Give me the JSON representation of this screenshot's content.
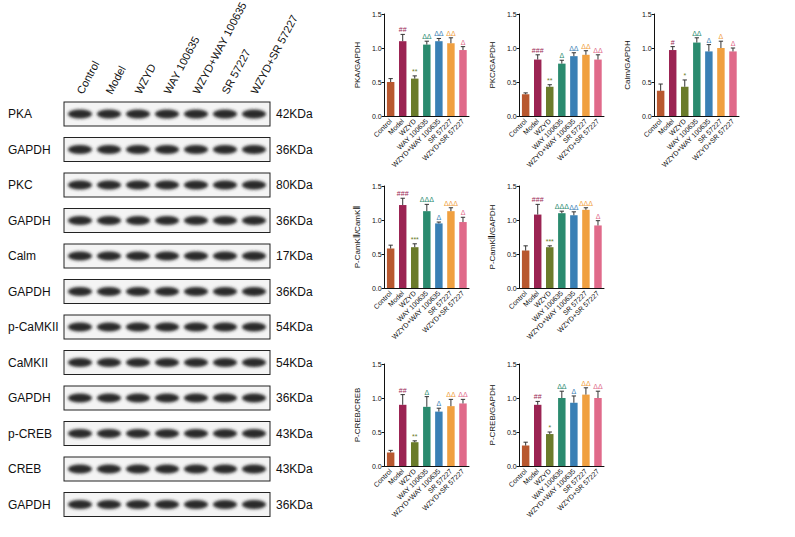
{
  "blot": {
    "lanes": [
      "Control",
      "Model",
      "WZYD",
      "WAY 100635",
      "WZYD+WAY 100635",
      "SR 57227",
      "WZYD+SR 57227"
    ],
    "rows": [
      {
        "label": "PKA",
        "size": "42KDa"
      },
      {
        "label": "GAPDH",
        "size": "36KDa"
      },
      {
        "label": "PKC",
        "size": "80KDa"
      },
      {
        "label": "GAPDH",
        "size": "36KDa"
      },
      {
        "label": "Calm",
        "size": "17KDa"
      },
      {
        "label": "GAPDH",
        "size": "36KDa"
      },
      {
        "label": "p-CaMKII",
        "size": "54KDa"
      },
      {
        "label": "CaMKII",
        "size": "54KDa"
      },
      {
        "label": "GAPDH",
        "size": "36KDa"
      },
      {
        "label": "p-CREB",
        "size": "43KDa"
      },
      {
        "label": "CREB",
        "size": "43KDa"
      },
      {
        "label": "GAPDH",
        "size": "36KDa"
      }
    ]
  },
  "chart_data": [
    {
      "type": "bar",
      "y_label": "PKA/GAPDH",
      "categories": [
        "Control",
        "Model",
        "WZYD",
        "WAY 100635",
        "WZYD+WAY 100635",
        "SR 57227",
        "WZYD+SR 57227"
      ],
      "values": [
        0.5,
        1.1,
        0.55,
        1.05,
        1.1,
        1.07,
        0.97
      ],
      "errors": [
        0.05,
        0.1,
        0.04,
        0.05,
        0.04,
        0.08,
        0.05
      ],
      "annotations": [
        null,
        "##",
        "**",
        "ΔΔ",
        "ΔΔ",
        "ΔΔ",
        "Δ"
      ],
      "colors": [
        "#b8582f",
        "#9b2453",
        "#6b7b2b",
        "#2b8b6f",
        "#3a80b5",
        "#f0a040",
        "#e06a8a"
      ],
      "ylim": [
        0,
        1.5
      ],
      "yticks": [
        {
          "value": 0,
          "label": "0.0"
        },
        0.5,
        {
          "value": 1,
          "label": "1.0"
        },
        1.5
      ],
      "grid": false
    },
    {
      "type": "bar",
      "y_label": "PKC/GAPDH",
      "categories": [
        "Control",
        "Model",
        "WZYD",
        "WAY 100635",
        "WZYD+WAY 100635",
        "SR 57227",
        "WZYD+SR 57227"
      ],
      "values": [
        0.32,
        0.83,
        0.43,
        0.77,
        0.88,
        0.9,
        0.83
      ],
      "errors": [
        0.02,
        0.07,
        0.03,
        0.05,
        0.05,
        0.06,
        0.07
      ],
      "annotations": [
        null,
        "###",
        "**",
        "Δ",
        "ΔΔ",
        "ΔΔ",
        "ΔΔ"
      ],
      "colors": [
        "#b8582f",
        "#9b2453",
        "#6b7b2b",
        "#2b8b6f",
        "#3a80b5",
        "#f0a040",
        "#e06a8a"
      ],
      "ylim": [
        0,
        1.5
      ],
      "yticks": [
        {
          "value": 0,
          "label": "0.0"
        },
        0.5,
        {
          "value": 1,
          "label": "1.0"
        },
        1.5
      ],
      "grid": false
    },
    {
      "type": "bar",
      "y_label": "Calm/GAPDH",
      "categories": [
        "Control",
        "Model",
        "WZYD",
        "WAY 100635",
        "WZYD+WAY 100635",
        "SR 57227",
        "WZYD+SR 57227"
      ],
      "values": [
        0.37,
        0.97,
        0.43,
        1.08,
        0.95,
        1.0,
        0.95
      ],
      "errors": [
        0.1,
        0.05,
        0.1,
        0.07,
        0.1,
        0.1,
        0.05
      ],
      "annotations": [
        null,
        "#",
        "*",
        "ΔΔ",
        "Δ",
        "Δ",
        "Δ"
      ],
      "colors": [
        "#b8582f",
        "#9b2453",
        "#6b7b2b",
        "#2b8b6f",
        "#3a80b5",
        "#f0a040",
        "#e06a8a"
      ],
      "ylim": [
        0,
        1.5
      ],
      "yticks": [
        {
          "value": 0,
          "label": "0.0"
        },
        0.5,
        {
          "value": 1,
          "label": "1.0"
        },
        1.5
      ],
      "grid": false
    },
    {
      "type": "bar",
      "y_label": "P-CamKⅡ/CamKⅡ",
      "categories": [
        "Control",
        "Model",
        "WZYD",
        "WAY 100635",
        "WZYD+WAY 100635",
        "SR 57227",
        "WZYD+SR 57227"
      ],
      "values": [
        0.58,
        1.22,
        0.6,
        1.13,
        0.95,
        1.13,
        0.97
      ],
      "errors": [
        0.05,
        0.1,
        0.05,
        0.1,
        0.02,
        0.05,
        0.07
      ],
      "annotations": [
        null,
        "###",
        "***",
        "ΔΔΔ",
        "Δ",
        "ΔΔΔ",
        "Δ"
      ],
      "colors": [
        "#b8582f",
        "#9b2453",
        "#6b7b2b",
        "#2b8b6f",
        "#3a80b5",
        "#f0a040",
        "#e06a8a"
      ],
      "ylim": [
        0,
        1.5
      ],
      "yticks": [
        {
          "value": 0,
          "label": "0.0"
        },
        0.5,
        {
          "value": 1,
          "label": "1.0"
        },
        1.5
      ],
      "grid": false
    },
    {
      "type": "bar",
      "y_label": "P-CamKⅡ/GAPDH",
      "categories": [
        "Control",
        "Model",
        "WZYD",
        "WAY 100635",
        "WZYD+WAY 100635",
        "SR 57227",
        "WZYD+SR 57227"
      ],
      "values": [
        0.55,
        1.08,
        0.6,
        1.1,
        1.07,
        1.15,
        0.92
      ],
      "errors": [
        0.07,
        0.15,
        0.02,
        0.03,
        0.05,
        0.03,
        0.07
      ],
      "annotations": [
        null,
        "###",
        "***",
        "ΔΔΔ",
        "ΔΔ",
        "ΔΔΔ",
        "Δ"
      ],
      "colors": [
        "#b8582f",
        "#9b2453",
        "#6b7b2b",
        "#2b8b6f",
        "#3a80b5",
        "#f0a040",
        "#e06a8a"
      ],
      "ylim": [
        0,
        1.5
      ],
      "yticks": [
        {
          "value": 0,
          "label": "0.0"
        },
        0.5,
        {
          "value": 1,
          "label": "1.0"
        },
        1.5
      ],
      "grid": false
    },
    {
      "type": "bar",
      "y_label": "P-CREB/CREB",
      "categories": [
        "Control",
        "Model",
        "WZYD",
        "WAY 100635",
        "WZYD+WAY 100635",
        "SR 57227",
        "WZYD+SR 57227"
      ],
      "values": [
        0.2,
        0.9,
        0.35,
        0.87,
        0.8,
        0.88,
        0.92
      ],
      "errors": [
        0.03,
        0.15,
        0.02,
        0.15,
        0.05,
        0.1,
        0.06
      ],
      "annotations": [
        null,
        "##",
        "**",
        "Δ",
        "Δ",
        "ΔΔ",
        "ΔΔ"
      ],
      "colors": [
        "#b8582f",
        "#9b2453",
        "#6b7b2b",
        "#2b8b6f",
        "#3a80b5",
        "#f0a040",
        "#e06a8a"
      ],
      "ylim": [
        0,
        1.5
      ],
      "yticks": [
        {
          "value": 0,
          "label": "0.0"
        },
        0.5,
        {
          "value": 1,
          "label": "1.0"
        },
        1.5
      ],
      "grid": false
    },
    {
      "type": "bar",
      "y_label": "P-CREB/GAPDH",
      "categories": [
        "Control",
        "Model",
        "WZYD",
        "WAY 100635",
        "WZYD+WAY 100635",
        "SR 57227",
        "WZYD+SR 57227"
      ],
      "values": [
        0.3,
        0.9,
        0.47,
        1.0,
        0.93,
        1.05,
        1.0
      ],
      "errors": [
        0.05,
        0.05,
        0.03,
        0.1,
        0.1,
        0.1,
        0.1
      ],
      "annotations": [
        null,
        "##",
        "*",
        "ΔΔ",
        "Δ",
        "ΔΔ",
        "ΔΔ"
      ],
      "colors": [
        "#b8582f",
        "#9b2453",
        "#6b7b2b",
        "#2b8b6f",
        "#3a80b5",
        "#f0a040",
        "#e06a8a"
      ],
      "ylim": [
        0,
        1.5
      ],
      "yticks": [
        {
          "value": 0,
          "label": "0.0"
        },
        0.5,
        {
          "value": 1,
          "label": "1.0"
        },
        1.5
      ],
      "grid": false
    }
  ]
}
